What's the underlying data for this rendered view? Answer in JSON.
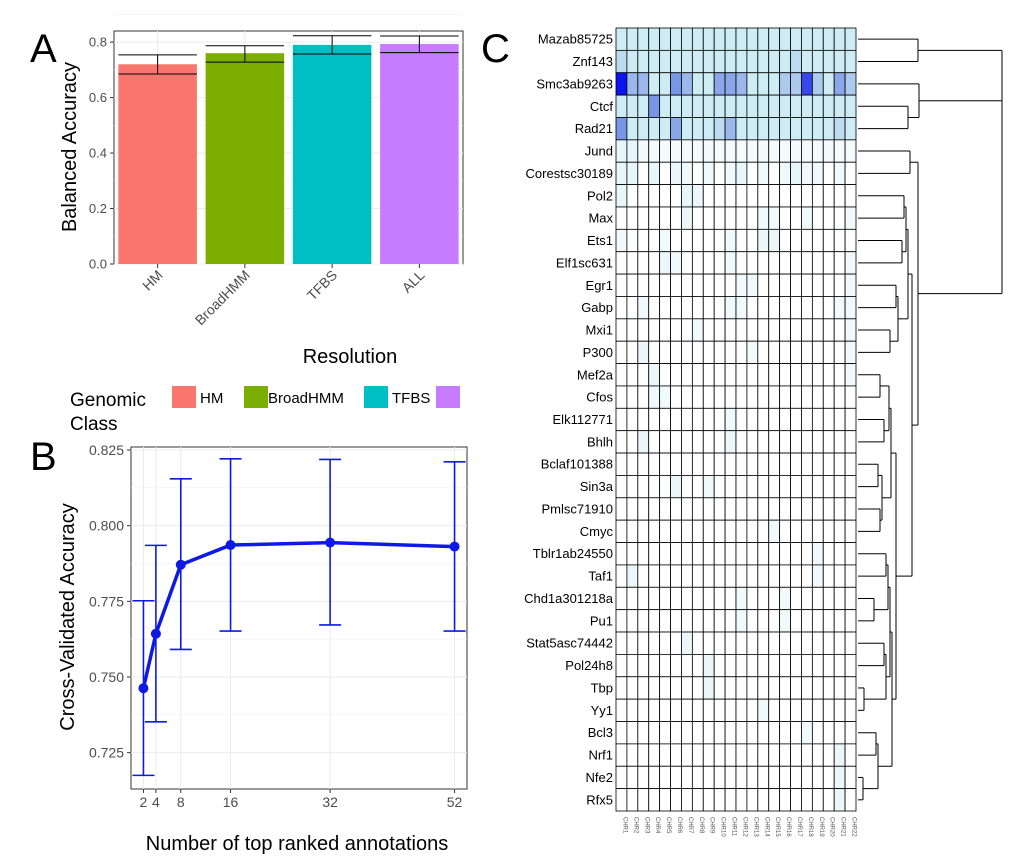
{
  "panels": {
    "a": "A",
    "b": "B",
    "c": "C"
  },
  "chart_data": [
    {
      "type": "bar",
      "categories": [
        "HM",
        "BroadHMM",
        "TFBS",
        "ALL"
      ],
      "values": [
        0.72,
        0.76,
        0.79,
        0.793
      ],
      "error_low": [
        0.685,
        0.728,
        0.757,
        0.762
      ],
      "error_high": [
        0.754,
        0.787,
        0.823,
        0.822
      ],
      "colors": [
        "#F8766D",
        "#7CAE00",
        "#00BFC4",
        "#C77CFF"
      ],
      "xlabel": "Resolution",
      "ylabel": "Balanced Accuracy",
      "ylim": [
        0,
        0.84
      ],
      "yticks": [
        "0.0",
        "0.2",
        "0.4",
        "0.6",
        "0.8"
      ],
      "ytick_values": [
        0,
        0.2,
        0.4,
        0.6,
        0.8
      ],
      "grid": true,
      "legend": {
        "title": "Genomic Class",
        "title_lines": [
          "Genomic",
          "Class"
        ],
        "placement": "bottom",
        "entries": [
          "HM",
          "BroadHMM",
          "TFBS",
          ""
        ]
      }
    },
    {
      "type": "line",
      "x": [
        2,
        4,
        8,
        16,
        32,
        52
      ],
      "xticks": [
        "2",
        "4",
        "8",
        "16",
        "32",
        "52"
      ],
      "xtick_values": [
        2,
        4,
        8,
        16,
        32,
        52
      ],
      "y": [
        0.7463,
        0.7643,
        0.7871,
        0.7936,
        0.7944,
        0.7931
      ],
      "error_low": [
        0.7175,
        0.7352,
        0.7591,
        0.7652,
        0.7672,
        0.7652
      ],
      "error_high": [
        0.7752,
        0.7935,
        0.8155,
        0.8221,
        0.8219,
        0.8211
      ],
      "color": "#0F19E6",
      "xlabel": "Number of top ranked annotations",
      "ylabel": "Cross-Validated Accuracy",
      "xlim": [
        0,
        54
      ],
      "ylim": [
        0.713,
        0.826
      ],
      "yticks": [
        "0.725",
        "0.750",
        "0.775",
        "0.800",
        "0.825"
      ],
      "ytick_values": [
        0.725,
        0.75,
        0.775,
        0.8,
        0.825
      ],
      "grid": true
    },
    {
      "type": "heatmap",
      "rows": [
        "Mazab85725",
        "Znf143",
        "Smc3ab9263",
        "Ctcf",
        "Rad21",
        "Jund",
        "Corestsc30189",
        "Pol2",
        "Max",
        "Ets1",
        "Elf1sc631",
        "Egr1",
        "Gabp",
        "Mxi1",
        "P300",
        "Mef2a",
        "Cfos",
        "Elk112771",
        "Bhlh",
        "Bclaf101388",
        "Sin3a",
        "Pmlsc71910",
        "Cmyc",
        "Tblr1ab24550",
        "Taf1",
        "Chd1a301218a",
        "Pu1",
        "Stat5asc74442",
        "Pol24h8",
        "Tbp",
        "Yy1",
        "Bcl3",
        "Nrf1",
        "Nfe2",
        "Rfx5"
      ],
      "columns": [
        "CHR1",
        "CHR2",
        "CHR3",
        "CHR4",
        "CHR5",
        "CHR6",
        "CHR7",
        "CHR8",
        "CHR9",
        "CHR10",
        "CHR11",
        "CHR12",
        "CHR13",
        "CHR14",
        "CHR15",
        "CHR16",
        "CHR17",
        "CHR18",
        "CHR19",
        "CHR20",
        "CHR21",
        "CHR22"
      ],
      "scale_range": [
        0,
        3
      ],
      "color_low": "#FFFFFF",
      "color_high": "#0A14F0",
      "dendrogram": "rows, right side"
    }
  ]
}
